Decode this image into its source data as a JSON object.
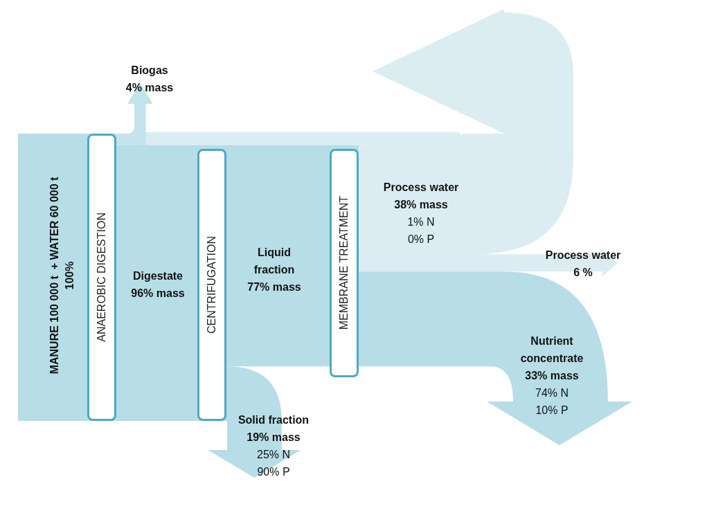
{
  "chart_data": {
    "type": "other",
    "categories": [
      "MANURE 100 000 t  + WATER 60 000 t",
      "Biogas",
      "Digestate",
      "Liquid fraction",
      "Solid fraction",
      "Process water",
      "Process water",
      "Nutrient concentrate"
    ],
    "values": [
      100,
      4,
      96,
      77,
      19,
      38,
      6,
      33
    ],
    "value_labels": [
      "100%",
      "4% mass",
      "96% mass",
      "77% mass",
      "19% mass",
      "38% mass",
      "6 %",
      "33% mass"
    ],
    "colors": [
      "#b7dde7",
      "#c4e3eb",
      "#b7dde7",
      "#b7dde7",
      "#b7dde7",
      "#dbedf3",
      "#dbedf3",
      "#b7dde7"
    ],
    "annotations": [
      "ANAEROBIC DIGESTION",
      "CENTRIFUGATION",
      "MEMBRANE TREATMENT",
      "25% N",
      "90% P",
      "1% N",
      "0% P",
      "74% N",
      "10% P"
    ]
  }
}
